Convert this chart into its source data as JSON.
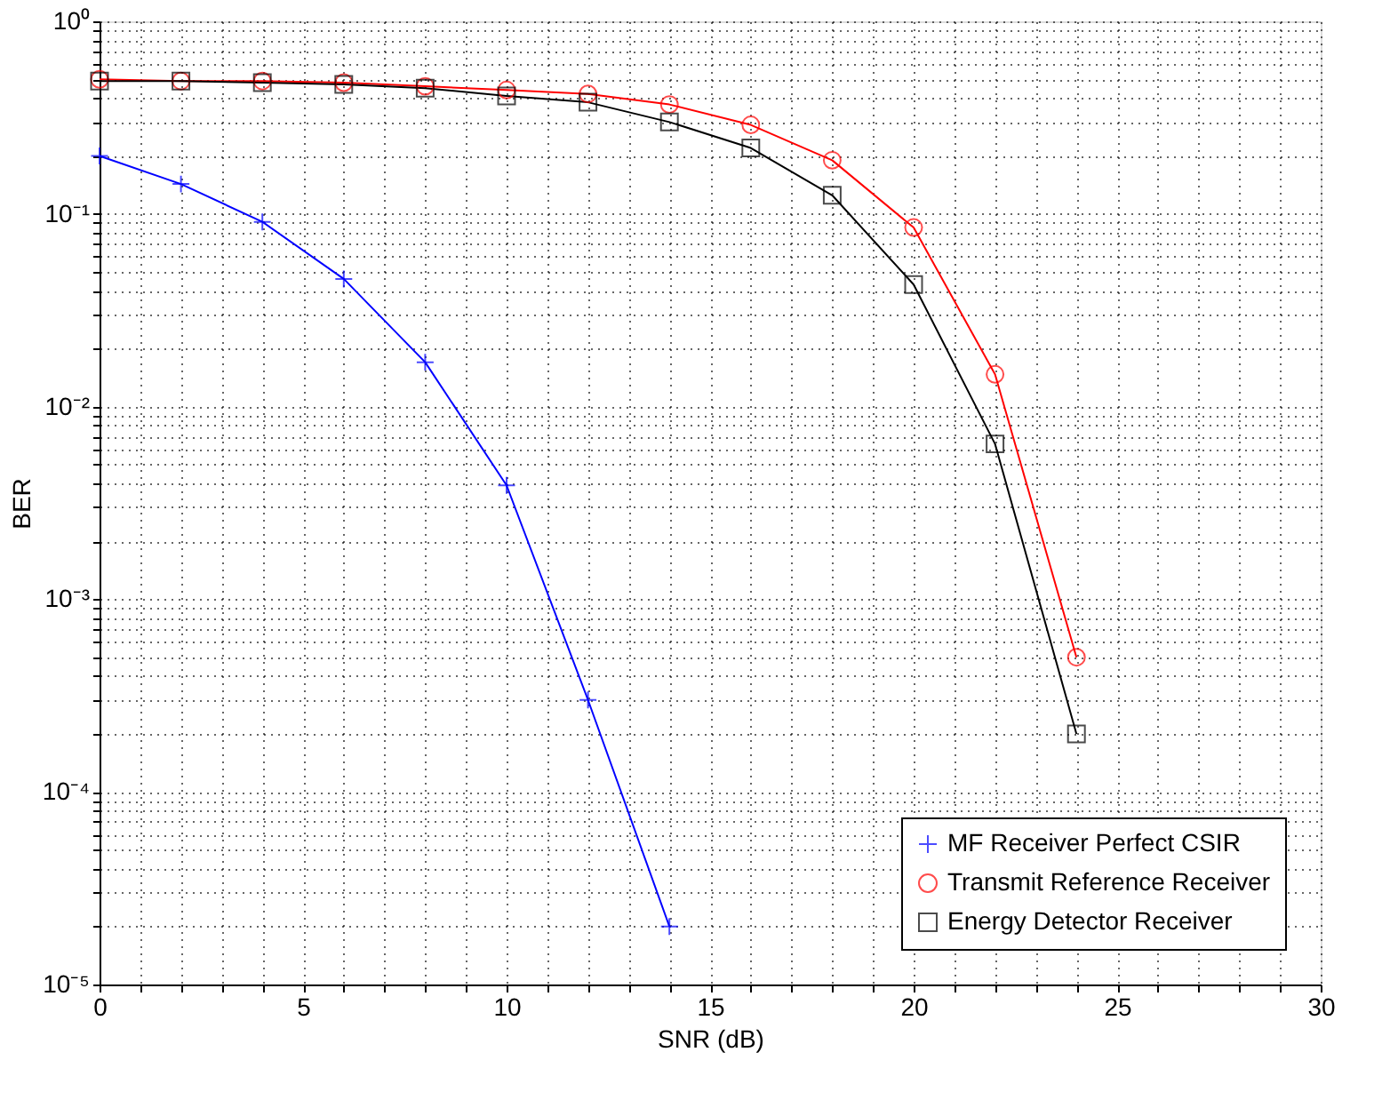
{
  "chart_data": {
    "type": "line",
    "xlabel": "SNR (dB)",
    "ylabel": "BER",
    "log": "y",
    "grid": true,
    "legend": "bottom right",
    "x": [
      0,
      2,
      4,
      6,
      8,
      10,
      12,
      14,
      16,
      18,
      20,
      22,
      24
    ],
    "xlim": [
      0,
      30
    ],
    "ylim": [
      1e-05,
      1
    ],
    "xticks": [
      0,
      {
        "value": 1,
        "label": null
      },
      {
        "value": 2,
        "label": null
      },
      {
        "value": 3,
        "label": null
      },
      {
        "value": 4,
        "label": null
      },
      5,
      {
        "value": 6,
        "label": null
      },
      {
        "value": 7,
        "label": null
      },
      {
        "value": 8,
        "label": null
      },
      {
        "value": 9,
        "label": null
      },
      10,
      {
        "value": 11,
        "label": null
      },
      {
        "value": 12,
        "label": null
      },
      {
        "value": 13,
        "label": null
      },
      {
        "value": 14,
        "label": null
      },
      15,
      {
        "value": 16,
        "label": null
      },
      {
        "value": 17,
        "label": null
      },
      {
        "value": 18,
        "label": null
      },
      {
        "value": 19,
        "label": null
      },
      20,
      {
        "value": 21,
        "label": null
      },
      {
        "value": 22,
        "label": null
      },
      {
        "value": 23,
        "label": null
      },
      {
        "value": 24,
        "label": null
      },
      25,
      {
        "value": 26,
        "label": null
      },
      {
        "value": 27,
        "label": null
      },
      {
        "value": 28,
        "label": null
      },
      {
        "value": 29,
        "label": null
      },
      30
    ],
    "yticks": [
      {
        "value": 1e-05,
        "label": "10⁻⁵"
      },
      {
        "value": 2e-05,
        "label": null
      },
      {
        "value": 3e-05,
        "label": null
      },
      {
        "value": 4e-05,
        "label": null
      },
      {
        "value": 5e-05,
        "label": null
      },
      {
        "value": 6e-05,
        "label": null
      },
      {
        "value": 7e-05,
        "label": null
      },
      {
        "value": 8e-05,
        "label": null
      },
      {
        "value": 9e-05,
        "label": null
      },
      {
        "value": 0.0001,
        "label": "10⁻⁴"
      },
      {
        "value": 0.0002,
        "label": null
      },
      {
        "value": 0.0003,
        "label": null
      },
      {
        "value": 0.0004,
        "label": null
      },
      {
        "value": 0.0005,
        "label": null
      },
      {
        "value": 0.0006,
        "label": null
      },
      {
        "value": 0.0007,
        "label": null
      },
      {
        "value": 0.0008,
        "label": null
      },
      {
        "value": 0.0009,
        "label": null
      },
      {
        "value": 0.001,
        "label": "10⁻³"
      },
      {
        "value": 0.002,
        "label": null
      },
      {
        "value": 0.003,
        "label": null
      },
      {
        "value": 0.004,
        "label": null
      },
      {
        "value": 0.005,
        "label": null
      },
      {
        "value": 0.006,
        "label": null
      },
      {
        "value": 0.007,
        "label": null
      },
      {
        "value": 0.008,
        "label": null
      },
      {
        "value": 0.009,
        "label": null
      },
      {
        "value": 0.01,
        "label": "10⁻²"
      },
      {
        "value": 0.02,
        "label": null
      },
      {
        "value": 0.03,
        "label": null
      },
      {
        "value": 0.04,
        "label": null
      },
      {
        "value": 0.05,
        "label": null
      },
      {
        "value": 0.06,
        "label": null
      },
      {
        "value": 0.07,
        "label": null
      },
      {
        "value": 0.08,
        "label": null
      },
      {
        "value": 0.09,
        "label": null
      },
      {
        "value": 0.1,
        "label": "10⁻¹"
      },
      {
        "value": 0.2,
        "label": null
      },
      {
        "value": 0.3,
        "label": null
      },
      {
        "value": 0.4,
        "label": null
      },
      {
        "value": 0.5,
        "label": null
      },
      {
        "value": 0.6,
        "label": null
      },
      {
        "value": 0.7,
        "label": null
      },
      {
        "value": 0.8,
        "label": null
      },
      {
        "value": 0.9,
        "label": null
      },
      {
        "value": 1,
        "label": "10⁰"
      }
    ],
    "series": [
      {
        "name": "MF Receiver Perfect CSIR",
        "color": "#0000ff",
        "marker": "cross",
        "values": [
          0.2,
          0.143,
          0.091,
          0.046,
          0.017,
          0.0039,
          0.0003,
          2e-05,
          null,
          null,
          null,
          null,
          null
        ]
      },
      {
        "name": "Transmit Reference Receiver",
        "color": "#ff0000",
        "marker": "circle",
        "values": [
          0.5,
          0.49,
          0.49,
          0.48,
          0.46,
          0.44,
          0.42,
          0.37,
          0.29,
          0.19,
          0.085,
          0.0147,
          0.0005
        ]
      },
      {
        "name": "Energy Detector Receiver",
        "color": "#000000",
        "marker": "square",
        "values": [
          0.49,
          0.49,
          0.48,
          0.47,
          0.45,
          0.41,
          0.38,
          0.3,
          0.22,
          0.125,
          0.043,
          0.0064,
          0.0002
        ]
      }
    ]
  }
}
